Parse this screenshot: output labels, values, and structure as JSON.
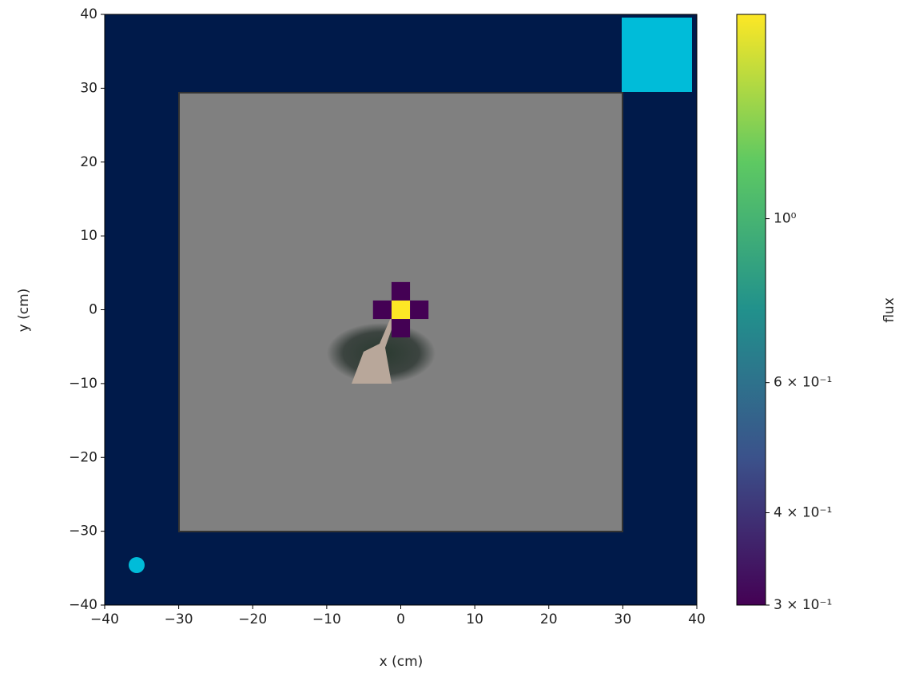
{
  "chart_data": {
    "type": "heatmap",
    "xlabel": "x (cm)",
    "ylabel": "y (cm)",
    "colorbar_label": "flux",
    "xlim": [
      -40,
      40
    ],
    "ylim": [
      -40,
      40
    ],
    "xticks": [
      {
        "value": -40,
        "label": "−40"
      },
      {
        "value": -30,
        "label": "−30"
      },
      {
        "value": -20,
        "label": "−20"
      },
      {
        "value": -10,
        "label": "−10"
      },
      0,
      10,
      20,
      30,
      40
    ],
    "yticks": [
      {
        "value": -40,
        "label": "−40"
      },
      {
        "value": -30,
        "label": "−30"
      },
      {
        "value": -20,
        "label": "−20"
      },
      {
        "value": -10,
        "label": "−10"
      },
      0,
      10,
      20,
      30,
      40
    ],
    "x": [
      0,
      0,
      -2.5,
      2.5,
      0
    ],
    "y": [
      0,
      2.5,
      0,
      0,
      -2.5
    ],
    "values": [
      1.89,
      0.3,
      0.3,
      0.3,
      0.3
    ],
    "colorbar_log": true,
    "clim": [
      0.3,
      1.89
    ],
    "cticks": [
      {
        "value": 0.3,
        "label": "3 × 10⁻¹"
      },
      {
        "value": 0.4,
        "label": "4 × 10⁻¹"
      },
      {
        "value": 0.6,
        "label": "6 × 10⁻¹"
      },
      {
        "value": 1,
        "label": "10⁰"
      }
    ]
  }
}
